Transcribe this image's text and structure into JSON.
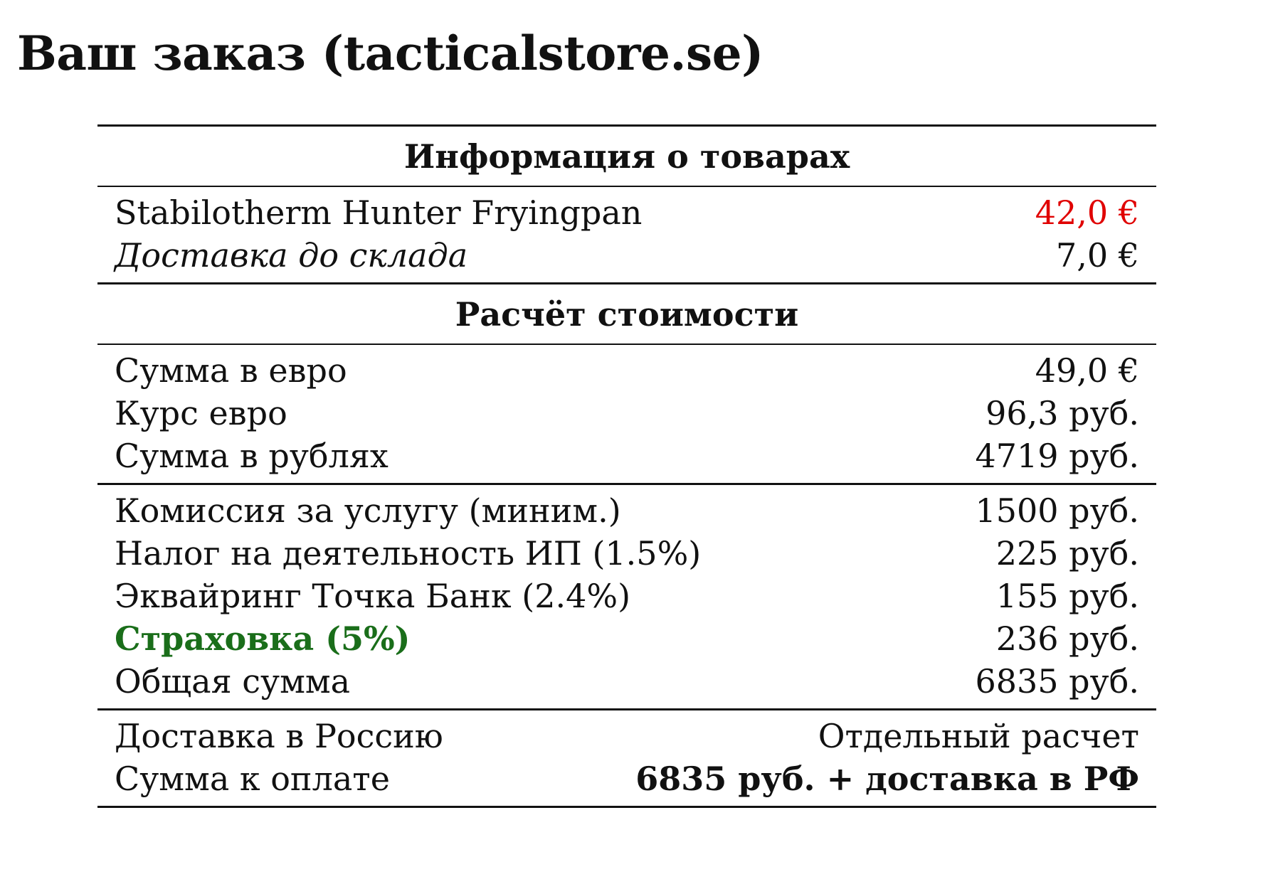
{
  "title": "Ваш заказ (tacticalstore.se)",
  "colors": {
    "item_price": "#e00000",
    "insurance_label": "#1a6e1a",
    "text": "#111111",
    "rule": "#111111"
  },
  "products_section": {
    "heading": "Информация о товарах",
    "items": [
      {
        "label": "Stabilotherm Hunter Fryingpan",
        "value": "42,0 €"
      },
      {
        "label": "Доставка до склада",
        "value": "7,0 €"
      }
    ]
  },
  "calc_section": {
    "heading": "Расчёт стоимости",
    "conversion": [
      {
        "label": "Сумма в евро",
        "value": "49,0 €"
      },
      {
        "label": "Курс евро",
        "value": "96,3 руб."
      },
      {
        "label": "Сумма в рублях",
        "value": "4719 руб."
      }
    ],
    "fees": [
      {
        "label": "Комиссия за услугу (миним.)",
        "value": "1500 руб."
      },
      {
        "label": "Налог на деятельность ИП (1.5%)",
        "value": "225 руб."
      },
      {
        "label": "Эквайринг Точка Банк (2.4%)",
        "value": "155 руб."
      },
      {
        "label": "Страховка (5%)",
        "value": "236 руб."
      },
      {
        "label": "Общая сумма",
        "value": "6835 руб."
      }
    ],
    "final": [
      {
        "label": "Доставка в Россию",
        "value": "Отдельный расчет"
      },
      {
        "label": "Сумма к оплате",
        "value": "6835 руб. + доставка в РФ"
      }
    ]
  }
}
